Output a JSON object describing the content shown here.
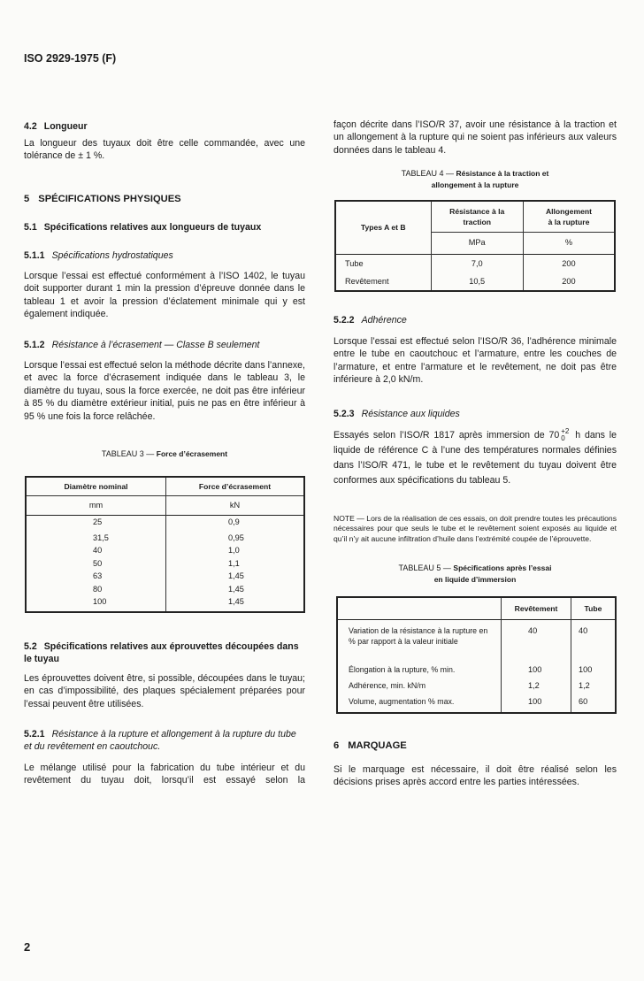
{
  "header": {
    "title": "ISO 2929-1975 (F)"
  },
  "left": {
    "s42": {
      "num": "4.2",
      "title": "Longueur",
      "text": "La longueur des tuyaux doit être celle commandée, avec une tolérance de ± 1 %."
    },
    "s5": {
      "num": "5",
      "title": "SPÉCIFICATIONS PHYSIQUES"
    },
    "s51": {
      "num": "5.1",
      "title": "Spécifications relatives aux longueurs de tuyaux"
    },
    "s511": {
      "num": "5.1.1",
      "title": "Spécifications hydrostatiques",
      "text": "Lorsque l’essai est effectué conformément à l’ISO 1402, le tuyau doit supporter durant 1 min la pression d’épreuve donnée dans le tableau 1 et avoir la pression d’éclatement minimale qui y est également indiquée."
    },
    "s512": {
      "num": "5.1.2",
      "title": "Résistance à l’écrasement — Classe B seulement",
      "text": "Lorsque l’essai est effectué selon la méthode décrite dans l’annexe, et avec la force d’écrasement indiquée dans le tableau 3, le diamètre du tuyau, sous la force exercée, ne doit pas être inférieur à 85 % du diamètre extérieur initial, puis ne pas en être inférieur à 95 % une fois la force relâchée."
    },
    "table3": {
      "caption_prefix": "TABLEAU 3 —",
      "caption_title": "Force d’écrasement",
      "headers": [
        "Diamètre nominal",
        "Force d’écrasement"
      ],
      "units": [
        "mm",
        "kN"
      ],
      "rows": [
        [
          "25",
          "0,9"
        ],
        [
          "31,5",
          "0,95"
        ],
        [
          "40",
          "1,0"
        ],
        [
          "50",
          "1,1"
        ],
        [
          "63",
          "1,45"
        ],
        [
          "80",
          "1,45"
        ],
        [
          "100",
          "1,45"
        ]
      ]
    },
    "s52": {
      "num": "5.2",
      "title": "Spécifications relatives aux éprouvettes découpées dans le tuyau",
      "text": "Les éprouvettes doivent être, si possible, découpées dans le tuyau; en cas d’impossibilité, des plaques spécialement préparées pour l’essai peuvent être utilisées."
    },
    "s521": {
      "num": "5.2.1",
      "title": "Résistance à la rupture et allongement à la rupture du tube et du revêtement en caoutchouc.",
      "text": "Le mélange utilisé pour la fabrication du tube intérieur et du revêtement du tuyau doit, lorsqu’il est essayé selon la"
    }
  },
  "right": {
    "cont": "façon décrite dans l’ISO/R 37, avoir une résistance à la traction et un allongement à la rupture qui ne soient pas inférieurs aux valeurs données dans le tableau 4.",
    "table4": {
      "caption_prefix": "TABLEAU 4 —",
      "caption_title_1": "Résistance à la traction et",
      "caption_title_2": "allongement à la rupture",
      "headers": [
        "Types A et B",
        "Résistance à la traction",
        "Allongement à la rupture"
      ],
      "units": [
        "MPa",
        "%"
      ],
      "rows": [
        [
          "Tube",
          "7,0",
          "200"
        ],
        [
          "Revêtement",
          "10,5",
          "200"
        ]
      ]
    },
    "s522": {
      "num": "5.2.2",
      "title": "Adhérence",
      "text": "Lorsque l’essai est effectué selon l’ISO/R 36, l’adhérence minimale entre le tube en caoutchouc et l’armature, entre les couches de l’armature, et entre l’armature et le revêtement, ne doit pas être inférieure à 2,0 kN/m."
    },
    "s523": {
      "num": "5.2.3",
      "title": "Résistance aux liquides",
      "text_a": "Essayés selon l’ISO/R 1817 après immersion de 70",
      "tol_plus": "+2",
      "tol_minus": "0",
      "text_b": "h dans le liquide de référence C à l’une des températures normales définies dans l’ISO/R 471, le tube et le revêtement du tuyau doivent être conformes aux spécifications du tableau 5."
    },
    "note": "NOTE — Lors de la réalisation de ces essais, on doit prendre toutes les précautions nécessaires pour que seuls le tube et le revêtement soient exposés au liquide et qu’il n’y ait aucune infiltration d’huile dans l’extrémité coupée de l’éprouvette.",
    "table5": {
      "caption_prefix": "TABLEAU 5 —",
      "caption_title_1": "Spécifications après l’essai",
      "caption_title_2": "en liquide d’immersion",
      "headers": [
        "",
        "Revêtement",
        "Tube"
      ],
      "rows": [
        [
          "Variation de la résistance à la rupture en % par rapport à la valeur initiale",
          "40",
          "40"
        ],
        [
          "Élongation à la rupture, % min.",
          "100",
          "100"
        ],
        [
          "Adhérence, min. kN/m",
          "1,2",
          "1,2"
        ],
        [
          "Volume, augmentation % max.",
          "100",
          "60"
        ]
      ]
    },
    "s6": {
      "num": "6",
      "title": "MARQUAGE",
      "text": "Si le marquage est nécessaire, il doit être réalisé selon les décisions prises après accord entre les parties intéressées."
    }
  },
  "footer": {
    "page": "2"
  }
}
